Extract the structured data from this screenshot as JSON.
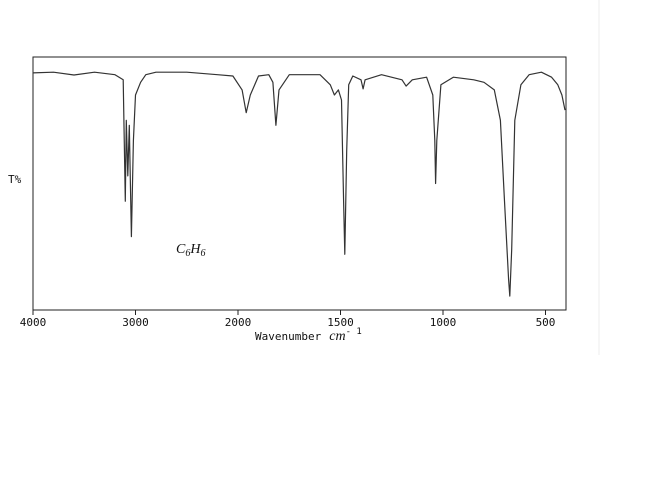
{
  "chart_data": {
    "type": "line",
    "ylabel": "T%",
    "xlabel": "Wavenumber",
    "xunit": {
      "base": "cm",
      "exp": "- 1"
    },
    "annotation": [
      "C",
      "6",
      "H",
      "6"
    ],
    "xlim": [
      4000,
      400
    ],
    "xscale": {
      "break": 2000,
      "factor": 2
    },
    "ylim": [
      0,
      100
    ],
    "xticks": [
      4000,
      3000,
      2000,
      1500,
      1000,
      500
    ],
    "color": "#333333",
    "x": [
      4000,
      3800,
      3600,
      3400,
      3200,
      3120,
      3100,
      3090,
      3075,
      3060,
      3040,
      3020,
      3000,
      2950,
      2900,
      2800,
      2500,
      2200,
      2050,
      1980,
      1960,
      1940,
      1900,
      1850,
      1830,
      1815,
      1800,
      1750,
      1600,
      1550,
      1530,
      1510,
      1495,
      1485,
      1479,
      1470,
      1460,
      1440,
      1400,
      1390,
      1380,
      1300,
      1200,
      1180,
      1150,
      1080,
      1050,
      1040,
      1036,
      1030,
      1010,
      950,
      850,
      800,
      750,
      720,
      700,
      680,
      674,
      665,
      650,
      620,
      580,
      520,
      470,
      440,
      420,
      405
    ],
    "values": [
      93.7,
      94,
      92.9,
      94,
      93,
      91,
      43,
      75,
      53,
      73,
      29,
      67,
      85,
      90,
      93,
      94,
      94,
      93,
      92.5,
      87,
      78,
      85,
      92.5,
      93,
      90,
      73,
      87,
      93,
      93,
      89,
      85,
      87,
      83,
      43,
      22,
      63,
      89,
      92.5,
      91,
      87.4,
      91,
      93,
      91,
      88.5,
      91,
      92,
      85,
      67,
      50,
      67,
      89,
      92,
      91,
      90,
      87,
      75,
      43,
      12,
      5.5,
      24,
      75,
      89,
      93,
      94,
      92,
      89,
      85,
      79
    ]
  }
}
